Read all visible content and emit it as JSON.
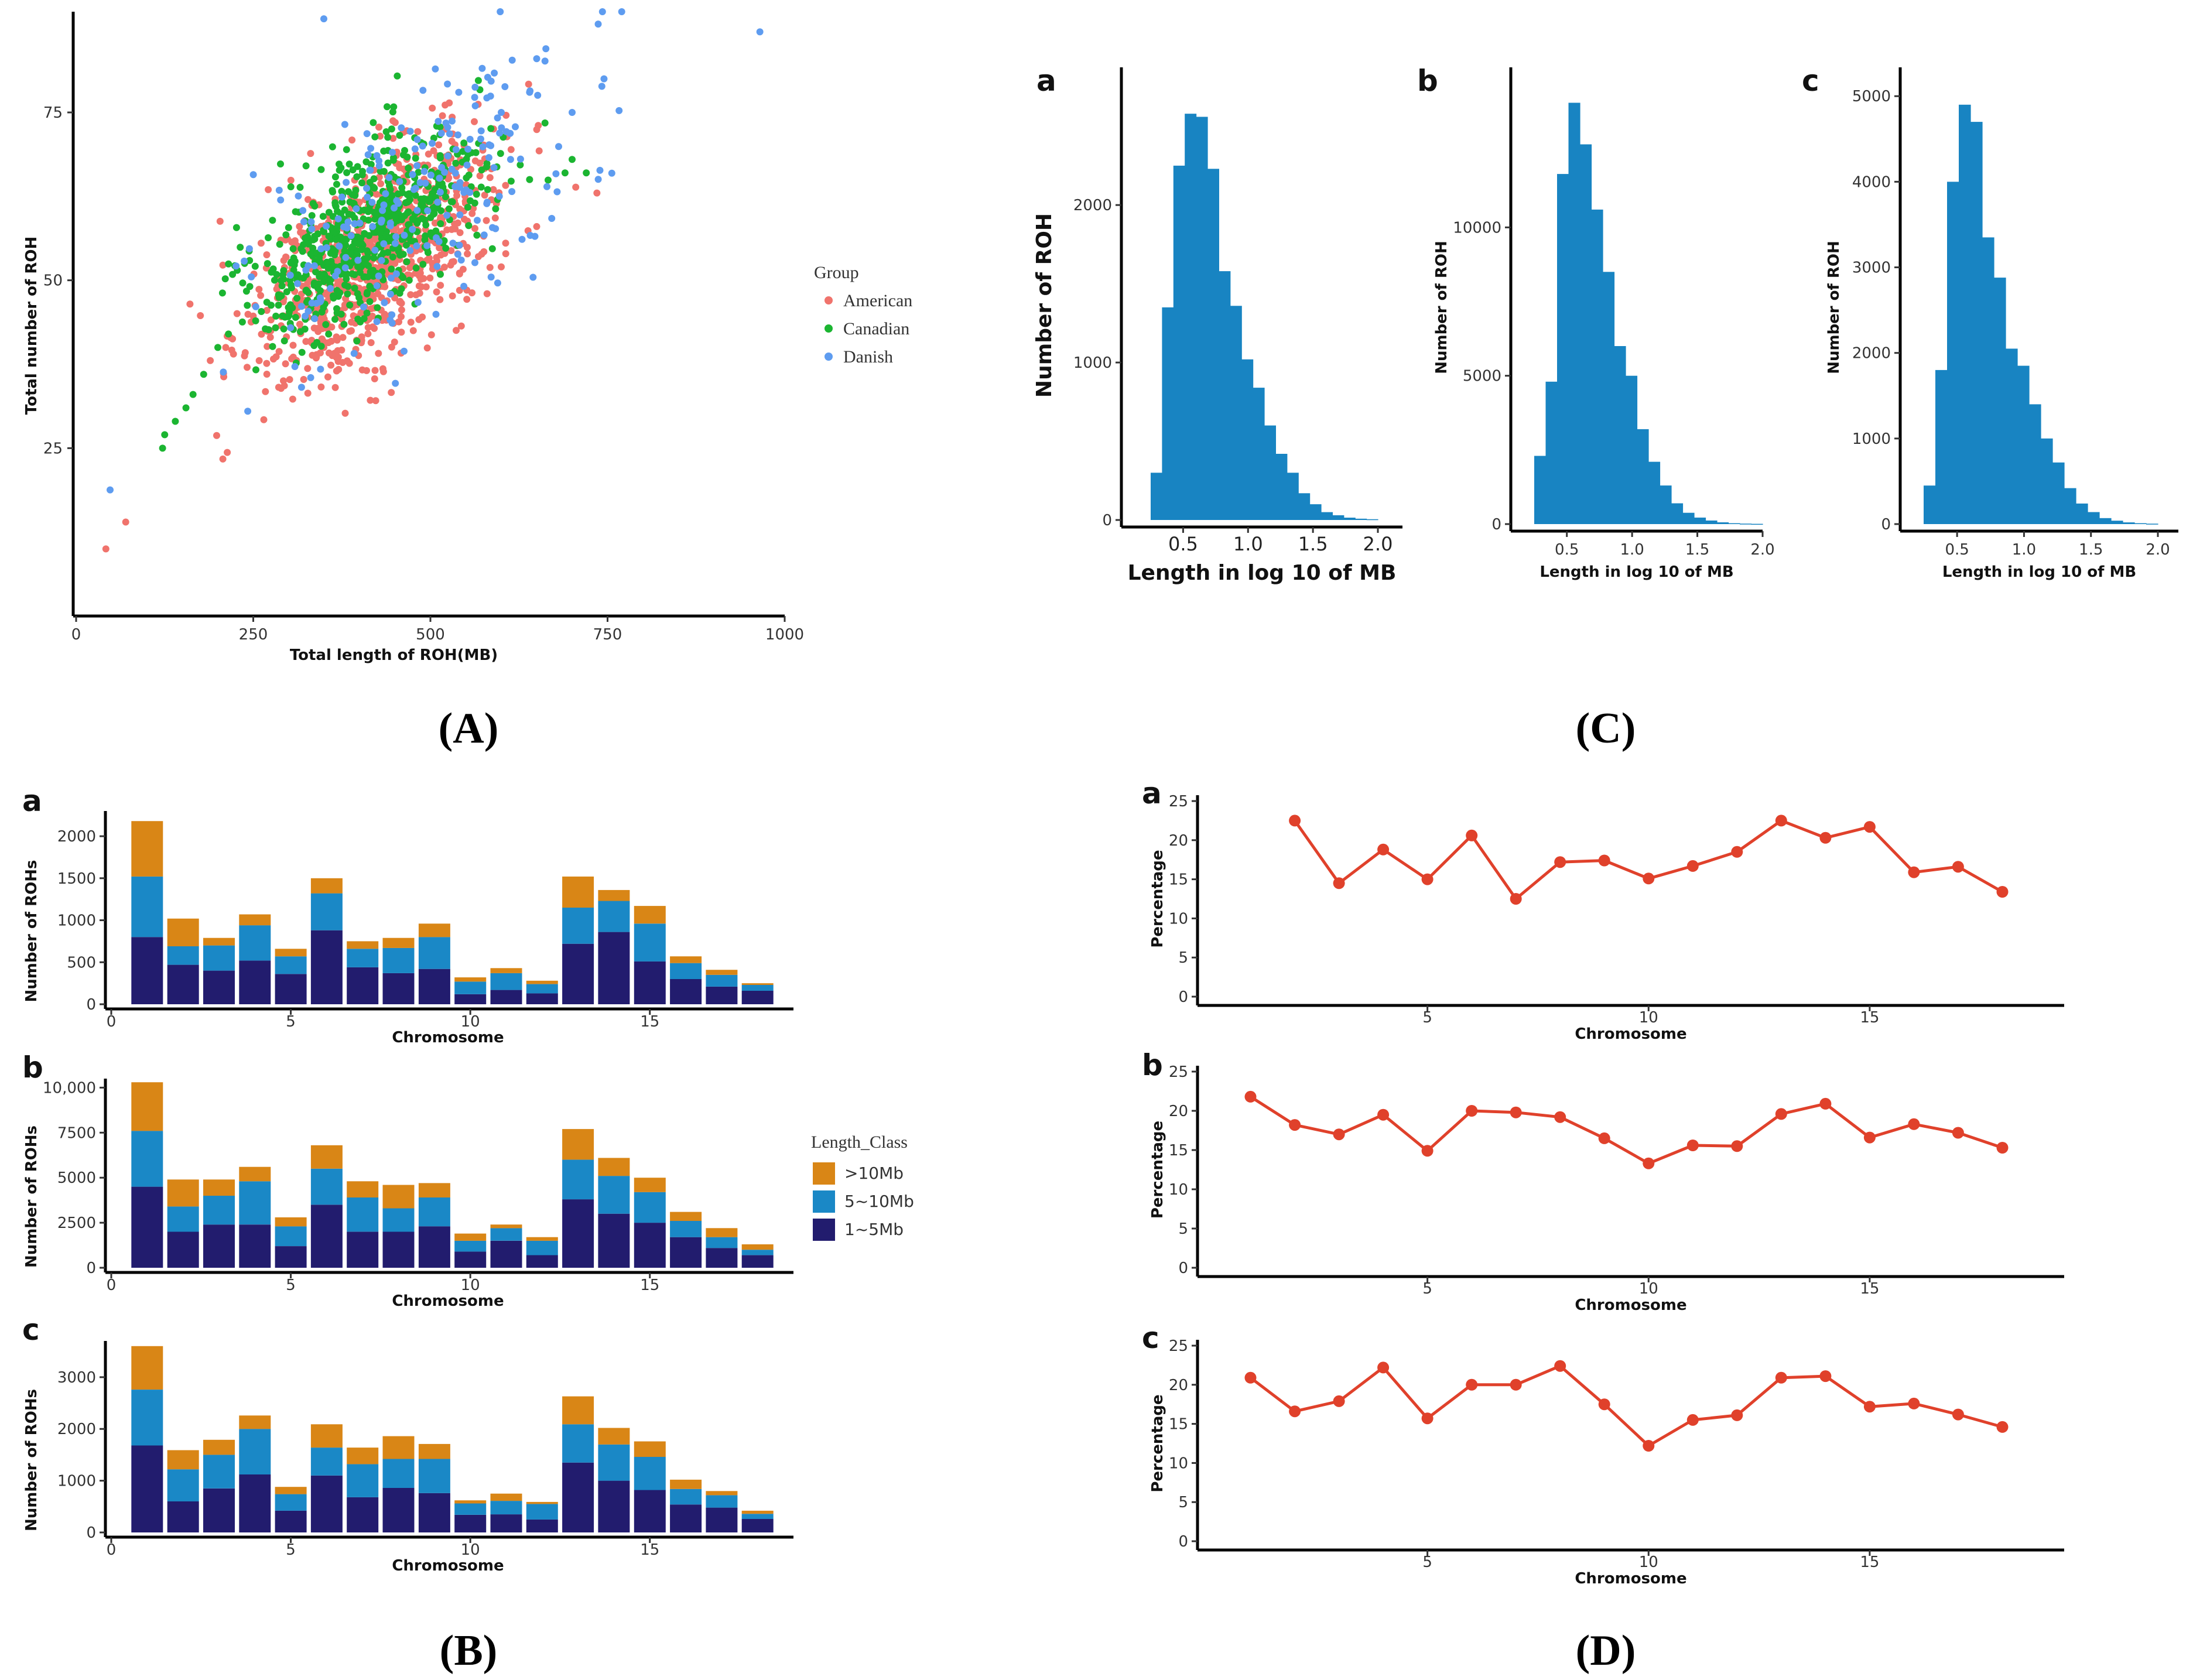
{
  "captions": {
    "A": "(A)",
    "B": "(B)",
    "C": "(C)",
    "D": "(D)"
  },
  "colors": {
    "american": "#F0736C",
    "canadian": "#1BB531",
    "danish": "#5E9CF0",
    "hist": "#1884C2",
    "gt10": "#D98616",
    "mid": "#1A88C6",
    "small": "#221C6E",
    "line": "#E0412B"
  },
  "chart_data": [
    {
      "panel": "A",
      "type": "scatter",
      "xlabel": "Total length of ROH(MB)",
      "ylabel": "Total number of ROH",
      "xlim": [
        0,
        1000
      ],
      "ylim": [
        0,
        90
      ],
      "xticks": [
        0,
        250,
        500,
        750,
        1000
      ],
      "yticks": [
        25,
        50,
        75
      ],
      "legend_title": "Group",
      "legend_position": "right",
      "groups": [
        {
          "name": "American",
          "color_key": "american",
          "center": [
            420,
            53
          ],
          "spread": [
            85,
            7
          ],
          "count": 900,
          "points": [
            [
              42,
              10
            ],
            [
              70,
              14
            ],
            [
              735,
              63
            ],
            [
              650,
              58
            ],
            [
              600,
              52
            ],
            [
              580,
              48
            ]
          ]
        },
        {
          "name": "Canadian",
          "color_key": "canadian",
          "center": [
            410,
            57
          ],
          "spread": [
            80,
            6
          ],
          "count": 650,
          "points": [
            [
              122,
              25
            ],
            [
              125,
              27
            ],
            [
              140,
              29
            ],
            [
              155,
              31
            ],
            [
              165,
              33
            ],
            [
              180,
              36
            ],
            [
              200,
              40
            ],
            [
              215,
              42
            ],
            [
              690,
              66
            ],
            [
              700,
              68
            ],
            [
              640,
              65
            ],
            [
              720,
              66
            ]
          ]
        },
        {
          "name": "Danish",
          "color_key": "danish",
          "center": [
            470,
            60
          ],
          "spread": [
            110,
            9
          ],
          "count": 220,
          "points": [
            [
              770,
              90
            ],
            [
              965,
              87
            ],
            [
              745,
              80
            ],
            [
              650,
              83
            ],
            [
              640,
              78
            ],
            [
              700,
              75
            ],
            [
              600,
              75
            ],
            [
              540,
              78
            ]
          ]
        }
      ]
    },
    {
      "panel": "B",
      "type": "bar",
      "stacked": true,
      "xlabel": "Chromosome",
      "ylabel": "Number of ROHs",
      "legend_title": "Length_Class",
      "legend_position": "right",
      "series_names": [
        ">10Mb",
        "5~10Mb",
        "1~5Mb"
      ],
      "xticks": [
        0,
        5,
        10,
        15
      ],
      "categories": [
        1,
        2,
        3,
        4,
        5,
        6,
        7,
        8,
        9,
        10,
        11,
        12,
        13,
        14,
        15,
        16,
        17,
        18
      ],
      "subplots": [
        {
          "letter": "a",
          "ylim": [
            0,
            2300
          ],
          "yticks": [
            0,
            500,
            1000,
            1500,
            2000
          ],
          "ytick_labels": [
            "0",
            "500",
            "1000",
            "1500",
            "2000"
          ],
          "series": [
            {
              "name": "1~5Mb",
              "values": [
                800,
                470,
                400,
                520,
                360,
                880,
                440,
                370,
                420,
                120,
                170,
                130,
                720,
                860,
                510,
                300,
                210,
                160
              ]
            },
            {
              "name": "5~10Mb",
              "values": [
                720,
                220,
                300,
                420,
                210,
                440,
                220,
                300,
                380,
                150,
                200,
                110,
                430,
                370,
                450,
                190,
                140,
                70
              ]
            },
            {
              "name": ">10Mb",
              "values": [
                660,
                330,
                90,
                130,
                90,
                180,
                90,
                120,
                160,
                50,
                60,
                40,
                370,
                130,
                210,
                80,
                60,
                20
              ]
            }
          ]
        },
        {
          "letter": "b",
          "ylim": [
            0,
            10500
          ],
          "yticks": [
            0,
            2500,
            5000,
            7500,
            10000
          ],
          "ytick_labels": [
            "0",
            "2500",
            "5000",
            "7500",
            "10,000"
          ],
          "series": [
            {
              "name": "1~5Mb",
              "values": [
                4500,
                2000,
                2400,
                2400,
                1200,
                3500,
                2000,
                2000,
                2300,
                900,
                1500,
                700,
                3800,
                3000,
                2500,
                1700,
                1100,
                700
              ]
            },
            {
              "name": "5~10Mb",
              "values": [
                3100,
                1400,
                1600,
                2400,
                1100,
                2000,
                1900,
                1300,
                1600,
                600,
                700,
                800,
                2200,
                2100,
                1700,
                900,
                600,
                300
              ]
            },
            {
              "name": ">10Mb",
              "values": [
                2700,
                1500,
                900,
                800,
                500,
                1300,
                900,
                1300,
                800,
                400,
                200,
                200,
                1700,
                1000,
                800,
                500,
                500,
                300
              ]
            }
          ]
        },
        {
          "letter": "c",
          "ylim": [
            0,
            3700
          ],
          "yticks": [
            0,
            1000,
            2000,
            3000
          ],
          "ytick_labels": [
            "0",
            "1000",
            "2000",
            "3000"
          ],
          "series": [
            {
              "name": "1~5Mb",
              "values": [
                1680,
                600,
                850,
                1120,
                420,
                1100,
                680,
                860,
                760,
                340,
                350,
                250,
                1350,
                1000,
                820,
                540,
                480,
                260
              ]
            },
            {
              "name": "5~10Mb",
              "values": [
                1080,
                620,
                650,
                880,
                320,
                540,
                640,
                560,
                660,
                220,
                260,
                300,
                740,
                700,
                640,
                300,
                240,
                100
              ]
            },
            {
              "name": ">10Mb",
              "values": [
                840,
                370,
                290,
                260,
                140,
                450,
                320,
                440,
                290,
                60,
                140,
                40,
                540,
                320,
                300,
                180,
                80,
                60
              ]
            }
          ]
        }
      ]
    },
    {
      "panel": "C",
      "type": "bar",
      "xlabel": "Length in log 10 of MB",
      "ylabel": "Number of ROH",
      "xticks": [
        0.5,
        1.0,
        1.5,
        2.0
      ],
      "xtick_labels": [
        "0.5",
        "1.0",
        "1.5",
        "2.0"
      ],
      "bin_edges": [
        0.25,
        0.3375,
        0.425,
        0.5125,
        0.6,
        0.6875,
        0.775,
        0.8625,
        0.95,
        1.0375,
        1.125,
        1.2125,
        1.3,
        1.3875,
        1.475,
        1.5625,
        1.65,
        1.7375,
        1.825,
        1.9125,
        2.0
      ],
      "subplots": [
        {
          "letter": "a",
          "ylim": [
            0,
            2800
          ],
          "yticks": [
            0,
            1000,
            2000
          ],
          "counts": [
            300,
            1350,
            2250,
            2580,
            2560,
            2230,
            1580,
            1360,
            1020,
            840,
            600,
            420,
            300,
            170,
            100,
            50,
            30,
            15,
            8,
            5
          ]
        },
        {
          "letter": "b",
          "ylim": [
            0,
            15000
          ],
          "yticks": [
            0,
            5000,
            10000
          ],
          "counts": [
            2300,
            4800,
            11800,
            14200,
            12800,
            10600,
            8500,
            6000,
            5000,
            3200,
            2100,
            1300,
            700,
            380,
            220,
            120,
            60,
            30,
            15,
            8
          ]
        },
        {
          "letter": "c",
          "ylim": [
            0,
            5200
          ],
          "yticks": [
            0,
            1000,
            2000,
            3000,
            4000,
            5000
          ],
          "counts": [
            450,
            1800,
            4000,
            4900,
            4700,
            3350,
            2880,
            2050,
            1850,
            1400,
            1000,
            720,
            420,
            240,
            140,
            70,
            40,
            20,
            10,
            5
          ]
        }
      ]
    },
    {
      "panel": "D",
      "type": "line",
      "xlabel": "Chromosome",
      "ylabel": "Percentage",
      "xlim": [
        0,
        19
      ],
      "ylim": [
        0,
        25
      ],
      "xticks": [
        5,
        10,
        15
      ],
      "yticks": [
        0,
        5,
        10,
        15,
        20,
        25
      ],
      "subplots": [
        {
          "letter": "a",
          "x": [
            2,
            3,
            4,
            5,
            6,
            7,
            8,
            9,
            10,
            11,
            12,
            13,
            14,
            15,
            16,
            17,
            18
          ],
          "y": [
            22.5,
            14.5,
            18.8,
            15.0,
            20.6,
            12.5,
            17.2,
            17.4,
            15.1,
            16.7,
            18.5,
            22.5,
            20.3,
            21.7,
            15.9,
            16.6,
            13.4
          ]
        },
        {
          "letter": "b",
          "x": [
            1,
            2,
            3,
            4,
            5,
            6,
            7,
            8,
            9,
            10,
            11,
            12,
            13,
            14,
            15,
            16,
            17,
            18
          ],
          "y": [
            21.8,
            18.2,
            17.0,
            19.5,
            14.9,
            20.0,
            19.8,
            19.2,
            16.5,
            13.3,
            15.6,
            15.5,
            19.6,
            20.9,
            16.6,
            18.3,
            17.2,
            15.3
          ]
        },
        {
          "letter": "c",
          "x": [
            1,
            2,
            3,
            4,
            5,
            6,
            7,
            8,
            9,
            10,
            11,
            12,
            13,
            14,
            15,
            16,
            17,
            18
          ],
          "y": [
            20.9,
            16.6,
            17.9,
            22.2,
            15.7,
            20.0,
            20.0,
            22.4,
            17.5,
            12.2,
            15.5,
            16.1,
            20.9,
            21.1,
            17.2,
            17.6,
            16.2,
            14.6
          ]
        }
      ]
    }
  ]
}
